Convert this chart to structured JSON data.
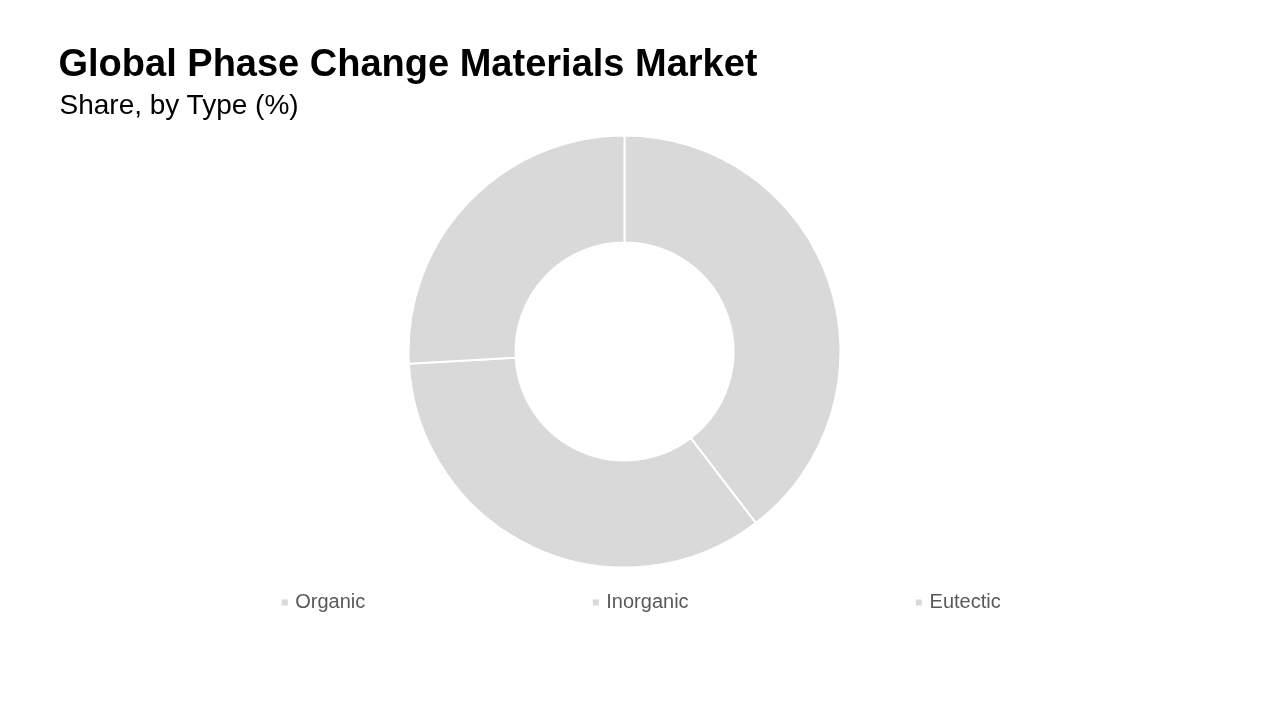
{
  "chart_data": {
    "type": "donut",
    "title": "Global Phase Change Materials Market",
    "subtitle": "Share, by Type (%)",
    "categories": [
      "Organic",
      "Inorganic",
      "Eutectic"
    ],
    "values": [
      39.6,
      34.5,
      25.9
    ],
    "colors": [
      "#d9d9d9",
      "#d9d9d9",
      "#d9d9d9"
    ],
    "legend": "bottom"
  }
}
